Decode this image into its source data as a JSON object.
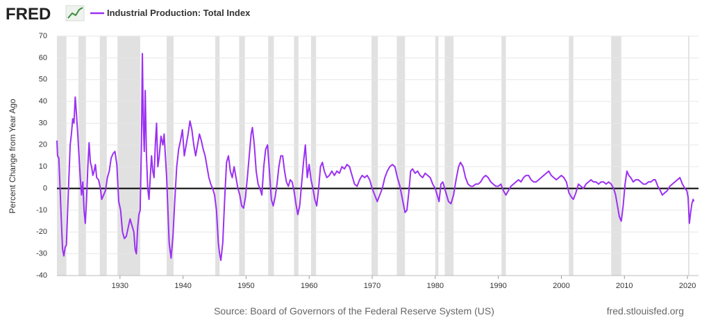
{
  "logo": "FRED",
  "source": "Source: Board of Governors of the Federal Reserve System (US)",
  "site": "fred.stlouisfed.org",
  "chart_data": {
    "type": "line",
    "y_label": "Percent Change from Year Ago",
    "xlim": [
      1920,
      2021.75
    ],
    "ylim": [
      -40,
      70
    ],
    "yticks": [
      -40,
      -30,
      -20,
      -10,
      0,
      10,
      20,
      30,
      40,
      50,
      60,
      70
    ],
    "xticks": [
      1930,
      1940,
      1950,
      1960,
      1970,
      1980,
      1990,
      2000,
      2010,
      2020
    ],
    "grid": true,
    "zero_line": 0,
    "recessions": [
      [
        1920.0,
        1921.5
      ],
      [
        1923.4,
        1924.6
      ],
      [
        1926.8,
        1927.9
      ],
      [
        1929.6,
        1933.2
      ],
      [
        1937.4,
        1938.5
      ],
      [
        1945.1,
        1945.8
      ],
      [
        1948.9,
        1949.8
      ],
      [
        1953.5,
        1954.4
      ],
      [
        1957.6,
        1958.3
      ],
      [
        1960.3,
        1961.1
      ],
      [
        1969.9,
        1970.9
      ],
      [
        1973.9,
        1975.2
      ],
      [
        1980.0,
        1980.5
      ],
      [
        1981.5,
        1982.9
      ],
      [
        1990.5,
        1991.2
      ],
      [
        2001.2,
        2001.9
      ],
      [
        2007.9,
        2009.5
      ],
      [
        2020.1,
        2020.3
      ]
    ],
    "x": [
      1920.0,
      1920.1,
      1920.3,
      1920.5,
      1920.7,
      1920.9,
      1921.1,
      1921.3,
      1921.5,
      1921.7,
      1921.9,
      1922.1,
      1922.3,
      1922.5,
      1922.7,
      1922.9,
      1923.1,
      1923.3,
      1923.5,
      1923.7,
      1923.9,
      1924.1,
      1924.3,
      1924.5,
      1924.7,
      1924.9,
      1925.1,
      1925.3,
      1925.5,
      1925.7,
      1925.9,
      1926.1,
      1926.3,
      1926.6,
      1926.9,
      1927.1,
      1927.4,
      1927.7,
      1928.0,
      1928.3,
      1928.6,
      1928.9,
      1929.2,
      1929.5,
      1929.8,
      1930.1,
      1930.4,
      1930.7,
      1931.0,
      1931.3,
      1931.6,
      1931.9,
      1932.2,
      1932.4,
      1932.6,
      1932.8,
      1933.0,
      1933.2,
      1933.4,
      1933.55,
      1933.7,
      1933.85,
      1934.0,
      1934.2,
      1934.4,
      1934.6,
      1934.8,
      1935.0,
      1935.2,
      1935.4,
      1935.6,
      1935.8,
      1936.0,
      1936.2,
      1936.5,
      1936.8,
      1937.0,
      1937.2,
      1937.4,
      1937.6,
      1937.8,
      1938.1,
      1938.4,
      1938.7,
      1939.0,
      1939.3,
      1939.6,
      1939.9,
      1940.2,
      1940.5,
      1940.8,
      1941.1,
      1941.4,
      1941.7,
      1942.0,
      1942.3,
      1942.6,
      1942.9,
      1943.2,
      1943.5,
      1943.8,
      1944.1,
      1944.4,
      1944.7,
      1945.0,
      1945.3,
      1945.6,
      1945.8,
      1946.0,
      1946.3,
      1946.6,
      1946.9,
      1947.2,
      1947.5,
      1947.8,
      1948.1,
      1948.4,
      1948.7,
      1949.0,
      1949.3,
      1949.6,
      1949.9,
      1950.2,
      1950.5,
      1950.8,
      1951.0,
      1951.3,
      1951.6,
      1951.9,
      1952.2,
      1952.5,
      1952.8,
      1953.1,
      1953.4,
      1953.7,
      1954.0,
      1954.3,
      1954.6,
      1954.9,
      1955.2,
      1955.5,
      1955.8,
      1956.1,
      1956.4,
      1956.7,
      1957.0,
      1957.3,
      1957.6,
      1957.9,
      1958.2,
      1958.5,
      1958.8,
      1959.1,
      1959.4,
      1959.7,
      1960.0,
      1960.3,
      1960.6,
      1960.9,
      1961.2,
      1961.5,
      1961.8,
      1962.1,
      1962.4,
      1962.8,
      1963.2,
      1963.6,
      1964.0,
      1964.4,
      1964.8,
      1965.2,
      1965.6,
      1966.0,
      1966.4,
      1966.8,
      1967.2,
      1967.6,
      1968.0,
      1968.4,
      1968.8,
      1969.2,
      1969.6,
      1970.0,
      1970.4,
      1970.8,
      1971.2,
      1971.6,
      1972.0,
      1972.4,
      1972.8,
      1973.2,
      1973.6,
      1974.0,
      1974.4,
      1974.8,
      1975.2,
      1975.5,
      1975.8,
      1976.1,
      1976.4,
      1976.8,
      1977.2,
      1977.6,
      1978.0,
      1978.4,
      1978.8,
      1979.2,
      1979.6,
      1980.0,
      1980.3,
      1980.6,
      1980.9,
      1981.2,
      1981.5,
      1981.8,
      1982.1,
      1982.5,
      1982.9,
      1983.3,
      1983.7,
      1984.0,
      1984.4,
      1984.8,
      1985.2,
      1985.6,
      1986.0,
      1986.4,
      1986.8,
      1987.2,
      1987.6,
      1988.0,
      1988.4,
      1988.8,
      1989.2,
      1989.6,
      1990.0,
      1990.4,
      1990.8,
      1991.2,
      1991.6,
      1992.0,
      1992.4,
      1992.8,
      1993.2,
      1993.6,
      1994.0,
      1994.4,
      1994.8,
      1995.2,
      1995.6,
      1996.0,
      1996.4,
      1996.8,
      1997.2,
      1997.6,
      1998.0,
      1998.4,
      1998.8,
      1999.2,
      1999.6,
      2000.0,
      2000.4,
      2000.8,
      2001.2,
      2001.6,
      2001.9,
      2002.3,
      2002.7,
      2003.1,
      2003.5,
      2003.9,
      2004.3,
      2004.7,
      2005.1,
      2005.5,
      2005.9,
      2006.3,
      2006.7,
      2007.1,
      2007.5,
      2007.9,
      2008.3,
      2008.6,
      2008.9,
      2009.2,
      2009.5,
      2009.8,
      2010.1,
      2010.4,
      2010.7,
      2011.0,
      2011.4,
      2011.8,
      2012.2,
      2012.6,
      2013.0,
      2013.4,
      2013.8,
      2014.2,
      2014.6,
      2014.9,
      2015.3,
      2015.7,
      2016.0,
      2016.4,
      2016.8,
      2017.2,
      2017.6,
      2018.0,
      2018.4,
      2018.8,
      2019.2,
      2019.6,
      2019.9,
      2020.1,
      2020.3,
      2020.5,
      2020.7,
      2020.9,
      2021.0
    ],
    "series": [
      {
        "name": "Industrial Production: Total Index",
        "color": "#9b30f2",
        "values": [
          22,
          15,
          14,
          0,
          -15,
          -28,
          -31,
          -27,
          -26,
          -10,
          5,
          20,
          25,
          32,
          30,
          42,
          34,
          25,
          15,
          5,
          -3,
          3,
          -10,
          -16,
          -5,
          10,
          21,
          12,
          10,
          6,
          8,
          11,
          5,
          4,
          0,
          -5,
          -3,
          -1,
          5,
          8,
          14,
          16,
          17,
          11,
          -6,
          -10,
          -20,
          -23,
          -22,
          -18,
          -14,
          -17,
          -20,
          -28,
          -30,
          -18,
          -12,
          -10,
          20,
          62,
          30,
          17,
          45,
          15,
          0,
          -5,
          5,
          15,
          8,
          5,
          20,
          30,
          10,
          14,
          24,
          20,
          25,
          15,
          5,
          -10,
          -25,
          -32,
          -22,
          -5,
          10,
          18,
          22,
          27,
          15,
          20,
          25,
          31,
          27,
          20,
          15,
          20,
          25,
          22,
          18,
          15,
          10,
          5,
          2,
          0,
          -3,
          -10,
          -25,
          -30,
          -33,
          -25,
          -5,
          12,
          15,
          8,
          5,
          10,
          5,
          0,
          -3,
          -8,
          -9,
          -4,
          5,
          15,
          25,
          28,
          20,
          8,
          2,
          0,
          -3,
          10,
          18,
          20,
          8,
          -5,
          -8,
          -4,
          2,
          10,
          15,
          15,
          8,
          3,
          1,
          4,
          3,
          -1,
          -7,
          -12,
          -8,
          2,
          12,
          20,
          5,
          11,
          4,
          0,
          -5,
          -8,
          0,
          10,
          12,
          8,
          5,
          6,
          8,
          6,
          8,
          7,
          10,
          9,
          11,
          10,
          6,
          2,
          1,
          4,
          6,
          5,
          6,
          4,
          0,
          -3,
          -6,
          -3,
          0,
          5,
          8,
          10,
          11,
          10,
          5,
          1,
          -5,
          -11,
          -10,
          -2,
          8,
          9,
          7,
          8,
          6,
          5,
          7,
          6,
          5,
          2,
          0,
          -3,
          -6,
          2,
          3,
          0,
          -3,
          -6,
          -7,
          -3,
          4,
          10,
          12,
          10,
          5,
          2,
          1,
          1,
          2,
          2,
          3,
          5,
          6,
          5,
          3,
          2,
          1,
          1,
          2,
          -1,
          -3,
          -1,
          1,
          2,
          3,
          4,
          3,
          5,
          6,
          6,
          4,
          3,
          3,
          4,
          5,
          6,
          7,
          8,
          6,
          5,
          4,
          5,
          6,
          5,
          3,
          -2,
          -4,
          -5,
          -2,
          2,
          1,
          0,
          2,
          3,
          4,
          3,
          3,
          2,
          3,
          3,
          2,
          3,
          2,
          0,
          -3,
          -8,
          -13,
          -15,
          -8,
          2,
          8,
          6,
          5,
          3,
          4,
          4,
          3,
          2,
          2,
          3,
          3,
          4,
          4,
          1,
          -1,
          -3,
          -2,
          -1,
          1,
          2,
          3,
          4,
          5,
          2,
          0,
          -1,
          -4,
          -16,
          -11,
          -7,
          -5,
          -6
        ]
      }
    ]
  }
}
